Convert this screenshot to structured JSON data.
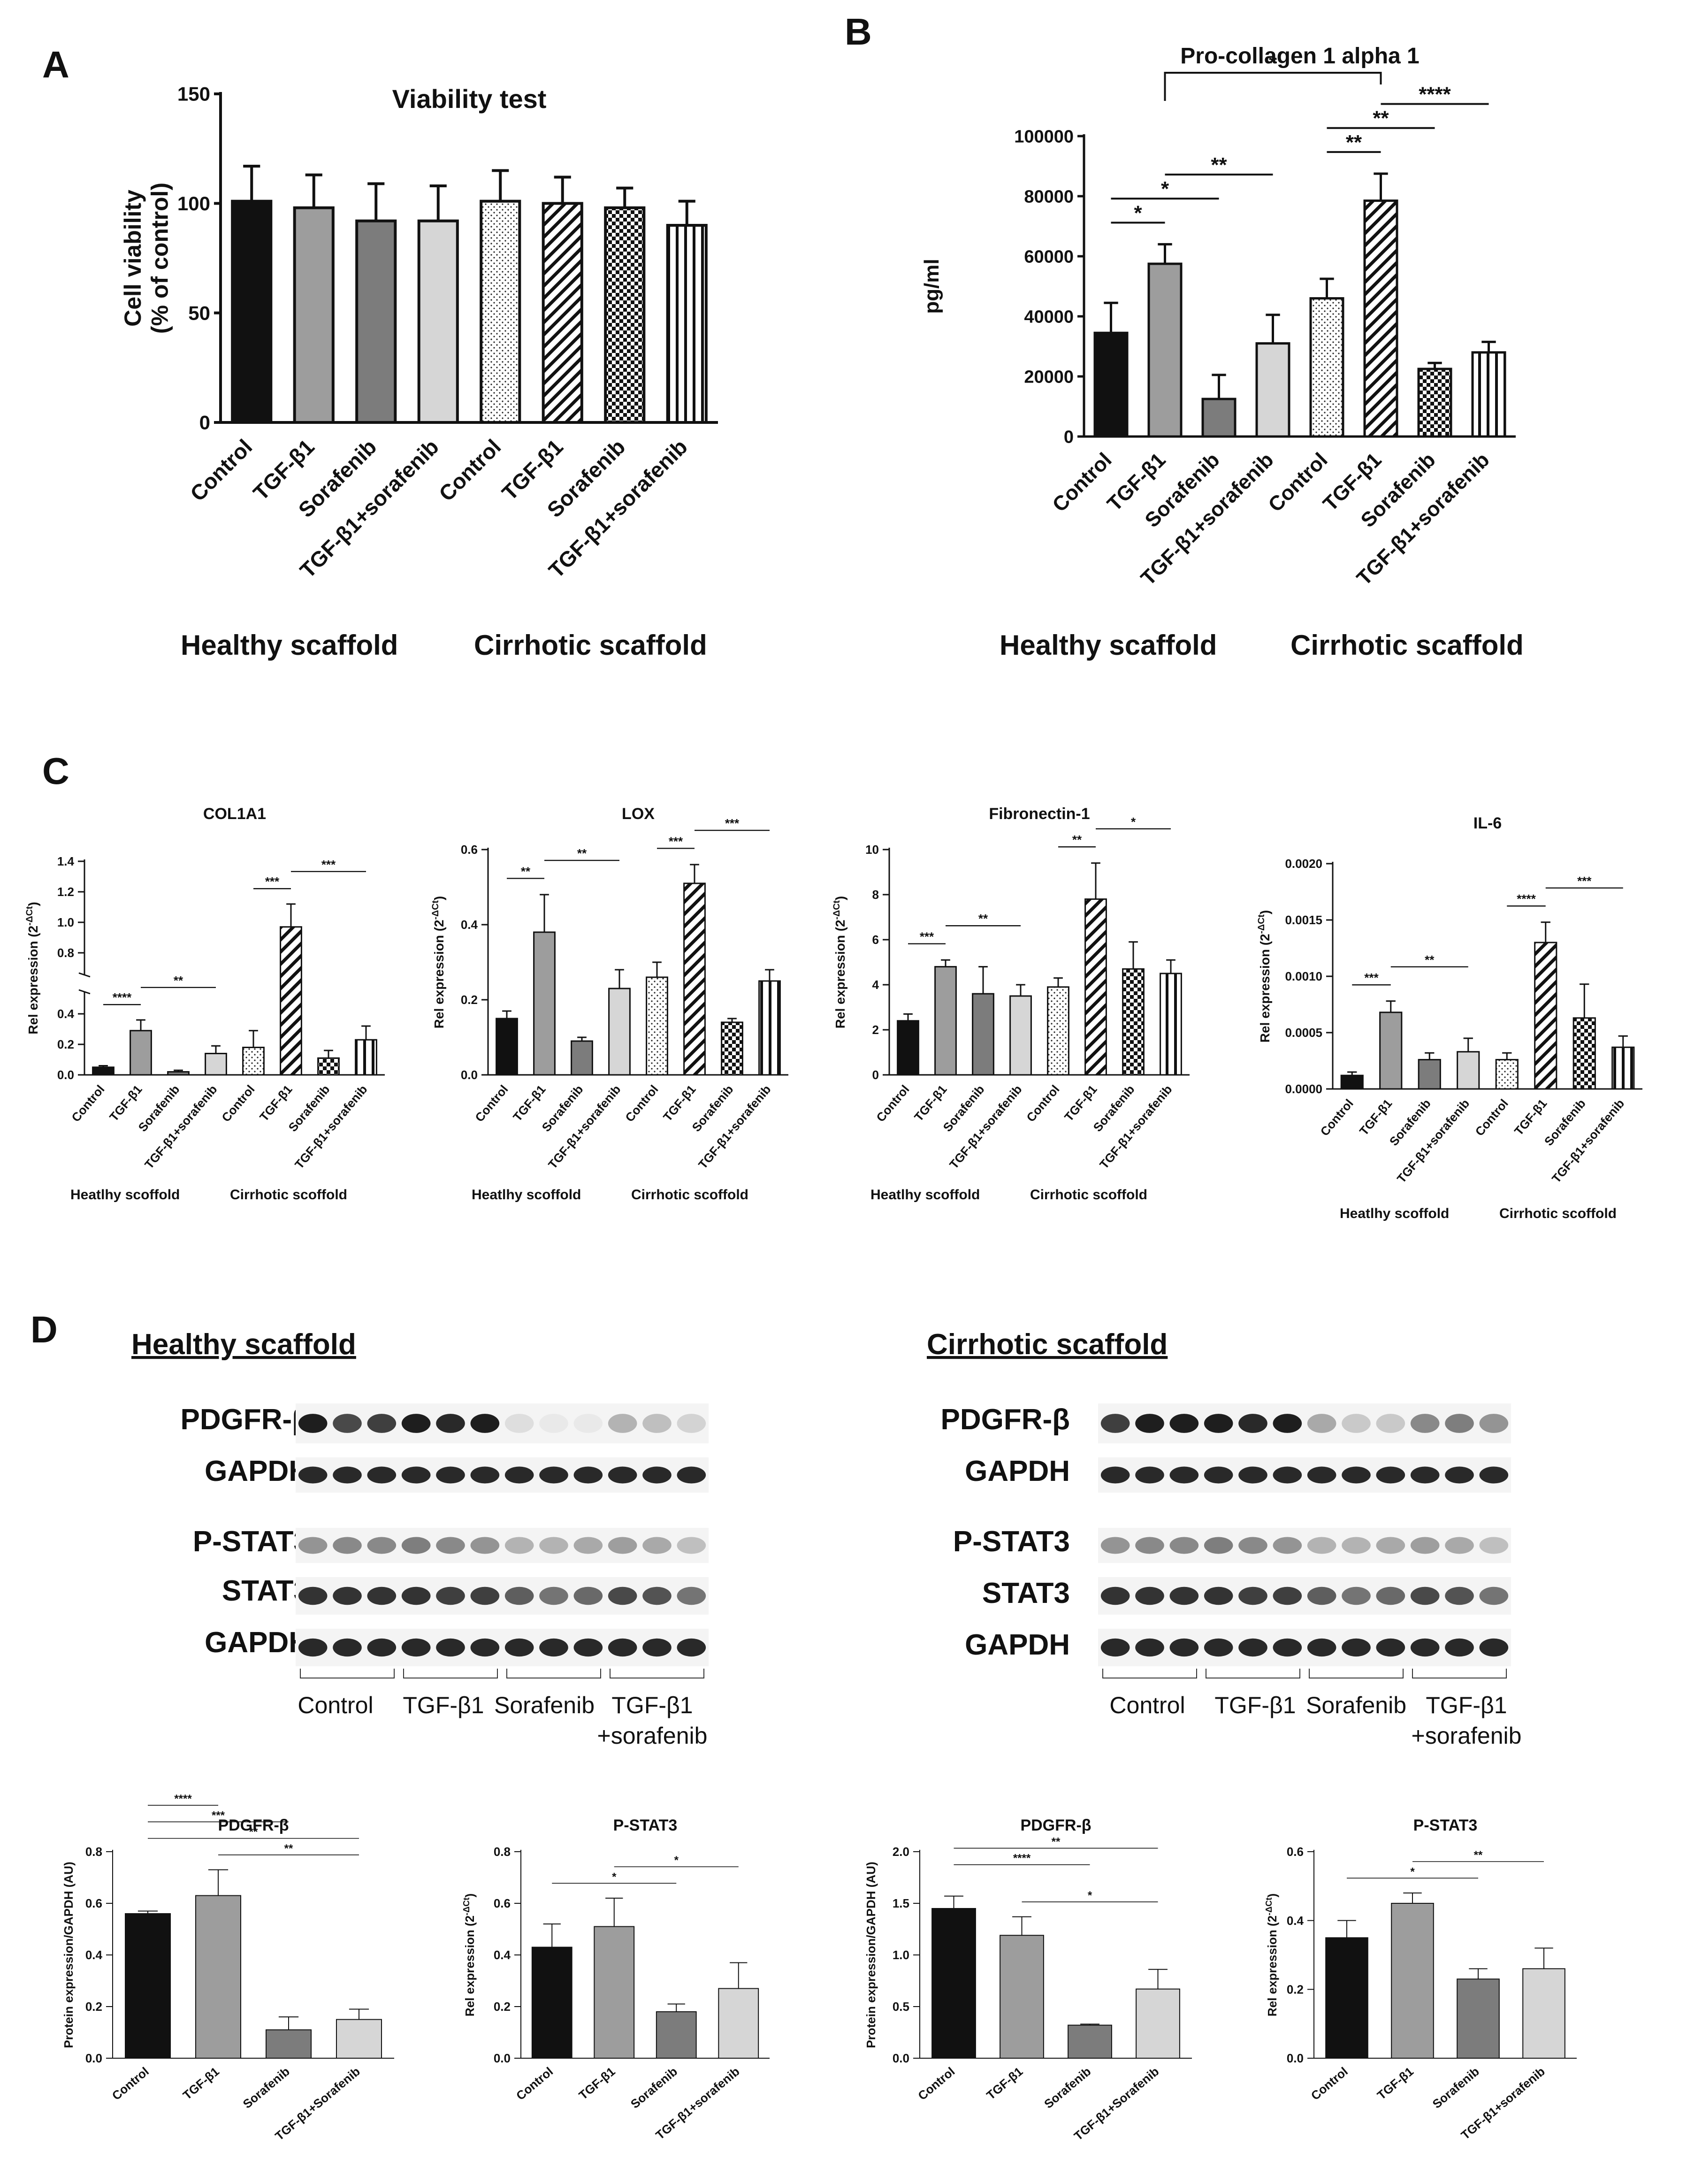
{
  "colors": {
    "black": "#111111",
    "dark_gray": "#7c7c7c",
    "mid_gray": "#9d9d9d",
    "light_gray": "#d6d6d6",
    "white": "#ffffff",
    "blot_band": "#1e1e1e",
    "blot_background": "#f4f4f4"
  },
  "fill_styles": [
    "black",
    "mid_gray",
    "dark_gray",
    "light_gray",
    "dots",
    "diag",
    "checker",
    "vlines"
  ],
  "panel_labels": {
    "a": "A",
    "b": "B",
    "c": "C",
    "d": "D"
  },
  "group_labels": {
    "healthy": "Healthy scaffold",
    "cirrhotic": "Cirrhotic scaffold"
  },
  "group_labels_small": {
    "healthy": "Heatlhy scoffold",
    "cirrhotic": "Cirrhotic scoffold"
  },
  "panel_d": {
    "healthy_title": "Healthy scaffold",
    "cirrhotic_title": "Cirrhotic scaffold",
    "blot_rows_top": [
      "PDGFR-β",
      "GAPDH"
    ],
    "blot_rows_bottom": [
      "P-STAT3",
      "STAT3",
      "GAPDH"
    ],
    "lane_groups": [
      "Control",
      "TGF-β1",
      "Sorafenib",
      "TGF-β1",
      "+sorafenib"
    ]
  },
  "chart_data": [
    {
      "id": "A",
      "type": "bar",
      "title": "Viability test",
      "xlabel": "",
      "ylabel": "Cell viability (% of control)",
      "ylabel_lines": [
        "Cell viability",
        "(% of control)"
      ],
      "ylim": [
        0,
        150
      ],
      "yticks": [
        "0",
        "50",
        "100",
        "150"
      ],
      "categories": [
        "Control",
        "TGF-β1",
        "Sorafenib",
        "TGF-β1+sorafenib",
        "Control",
        "TGF-β1",
        "Sorafenib",
        "TGF-β1+sorafenib"
      ],
      "values": [
        101,
        98,
        92,
        92,
        101,
        100,
        98,
        90
      ],
      "errors": [
        16,
        15,
        17,
        16,
        14,
        12,
        9,
        11
      ],
      "groups": [
        "Healthy scaffold",
        "Cirrhotic scaffold"
      ],
      "significance": []
    },
    {
      "id": "B",
      "type": "bar",
      "title": "Pro-collagen 1 alpha 1",
      "xlabel": "",
      "ylabel": "pg/ml",
      "ylim": [
        0,
        100000
      ],
      "yticks": [
        "0",
        "20000",
        "40000",
        "60000",
        "80000",
        "100000"
      ],
      "categories": [
        "Control",
        "TGF-β1",
        "Sorafenib",
        "TGF-β1+sorafenib",
        "Control",
        "TGF-β1",
        "Sorafenib",
        "TGF-β1+sorafenib"
      ],
      "values": [
        34500,
        57500,
        12500,
        31000,
        46000,
        78500,
        22500,
        28000
      ],
      "errors": [
        10000,
        6500,
        8000,
        9500,
        6500,
        9000,
        2000,
        3500
      ],
      "groups": [
        "Healthy scaffold",
        "Cirrhotic scaffold"
      ],
      "significance": [
        {
          "from": 0,
          "to": 1,
          "label": "*",
          "level": 0
        },
        {
          "from": 0,
          "to": 2,
          "label": "*",
          "level": 1
        },
        {
          "from": 1,
          "to": 3,
          "label": "**",
          "level": 2
        },
        {
          "from": 4,
          "to": 5,
          "label": "**",
          "level": 0
        },
        {
          "from": 4,
          "to": 6,
          "label": "**",
          "level": 1
        },
        {
          "from": 5,
          "to": 7,
          "label": "****",
          "level": 2
        },
        {
          "from": 1,
          "to": 5,
          "label": "*",
          "level": 3,
          "bracket": true
        }
      ]
    },
    {
      "id": "C1",
      "type": "bar",
      "title": "COL1A1",
      "xlabel": "",
      "ylabel": "Rel expression (2^-ΔCt)",
      "ylabel_lines": [
        "Rel expression (2",
        "-ΔCt",
        ")"
      ],
      "ylim": [
        0,
        1.4
      ],
      "yticks": [
        "0.0",
        "0.2",
        "0.4",
        "0.8",
        "1.0",
        "1.2",
        "1.4"
      ],
      "broken_axis": true,
      "categories": [
        "Control",
        "TGF-β1",
        "Sorafenib",
        "TGF-β1+sorafenib",
        "Control",
        "TGF-β1",
        "Sorafenib",
        "TGF-β1+sorafenib"
      ],
      "values": [
        0.05,
        0.29,
        0.02,
        0.14,
        0.18,
        0.97,
        0.11,
        0.23
      ],
      "errors": [
        0.01,
        0.07,
        0.01,
        0.05,
        0.11,
        0.15,
        0.05,
        0.09
      ],
      "groups": [
        "Heatlhy scoffold",
        "Cirrhotic scoffold"
      ],
      "significance": [
        {
          "from": 0,
          "to": 1,
          "label": "****",
          "level": 0
        },
        {
          "from": 1,
          "to": 3,
          "label": "**",
          "level": 1
        },
        {
          "from": 4,
          "to": 5,
          "label": "***",
          "level": 0
        },
        {
          "from": 5,
          "to": 7,
          "label": "***",
          "level": 1
        }
      ]
    },
    {
      "id": "C2",
      "type": "bar",
      "title": "LOX",
      "xlabel": "",
      "ylabel": "Rel expression (2^-ΔCt)",
      "ylabel_lines": [
        "Rel expression (2",
        "-ΔCt",
        ")"
      ],
      "ylim": [
        0,
        0.6
      ],
      "yticks": [
        "0.0",
        "0.2",
        "0.4",
        "0.6"
      ],
      "categories": [
        "Control",
        "TGF-β1",
        "Sorafenib",
        "TGF-β1+sorafenib",
        "Control",
        "TGF-β1",
        "Sorafenib",
        "TGF-β1+sorafenib"
      ],
      "values": [
        0.15,
        0.38,
        0.09,
        0.23,
        0.26,
        0.51,
        0.14,
        0.25
      ],
      "errors": [
        0.02,
        0.1,
        0.01,
        0.05,
        0.04,
        0.05,
        0.01,
        0.03
      ],
      "groups": [
        "Heatlhy scoffold",
        "Cirrhotic scoffold"
      ],
      "significance": [
        {
          "from": 0,
          "to": 1,
          "label": "**",
          "level": 0
        },
        {
          "from": 1,
          "to": 3,
          "label": "**",
          "level": 1
        },
        {
          "from": 4,
          "to": 5,
          "label": "***",
          "level": 0
        },
        {
          "from": 5,
          "to": 7,
          "label": "***",
          "level": 1
        }
      ]
    },
    {
      "id": "C3",
      "type": "bar",
      "title": "Fibronectin-1",
      "xlabel": "",
      "ylabel": "Rel expression (2^-ΔCt)",
      "ylabel_lines": [
        "Rel expression (2",
        "-ΔCt",
        ")"
      ],
      "ylim": [
        0,
        10
      ],
      "yticks": [
        "0",
        "2",
        "4",
        "6",
        "8",
        "10"
      ],
      "categories": [
        "Control",
        "TGF-β1",
        "Sorafenib",
        "TGF-β1+sorafenib",
        "Control",
        "TGF-β1",
        "Sorafenib",
        "TGF-β1+sorafenib"
      ],
      "values": [
        2.4,
        4.8,
        3.6,
        3.5,
        3.9,
        7.8,
        4.7,
        4.5
      ],
      "errors": [
        0.3,
        0.3,
        1.2,
        0.5,
        0.4,
        1.6,
        1.2,
        0.6
      ],
      "groups": [
        "Heatlhy scoffold",
        "Cirrhotic scoffold"
      ],
      "significance": [
        {
          "from": 0,
          "to": 1,
          "label": "***",
          "level": 0
        },
        {
          "from": 1,
          "to": 3,
          "label": "**",
          "level": 1
        },
        {
          "from": 4,
          "to": 5,
          "label": "**",
          "level": 0
        },
        {
          "from": 5,
          "to": 7,
          "label": "*",
          "level": 1
        }
      ]
    },
    {
      "id": "C4",
      "type": "bar",
      "title": "IL-6",
      "xlabel": "",
      "ylabel": "Rel expression (2^-ΔCt)",
      "ylabel_lines": [
        "Rel expression (2",
        "-ΔCt",
        ")"
      ],
      "ylim": [
        0,
        0.002
      ],
      "yticks": [
        "0.0000",
        "0.0005",
        "0.0010",
        "0.0015",
        "0.0020"
      ],
      "categories": [
        "Control",
        "TGF-β1",
        "Sorafenib",
        "TGF-β1+sorafenib",
        "Control",
        "TGF-β1",
        "Sorafenib",
        "TGF-β1+sorafenib"
      ],
      "values": [
        0.00012,
        0.00068,
        0.00026,
        0.00033,
        0.00026,
        0.0013,
        0.00063,
        0.00037
      ],
      "errors": [
        3e-05,
        0.0001,
        6e-05,
        0.00012,
        6e-05,
        0.00018,
        0.0003,
        0.0001
      ],
      "groups": [
        "Heatlhy scoffold",
        "Cirrhotic scoffold"
      ],
      "significance": [
        {
          "from": 0,
          "to": 1,
          "label": "***",
          "level": 0
        },
        {
          "from": 1,
          "to": 3,
          "label": "**",
          "level": 1
        },
        {
          "from": 4,
          "to": 5,
          "label": "****",
          "level": 0
        },
        {
          "from": 5,
          "to": 7,
          "label": "***",
          "level": 1
        }
      ]
    },
    {
      "id": "D1",
      "type": "bar",
      "title": "PDGFR-β",
      "xlabel": "",
      "ylabel": "Protein expression/GAPDH (AU)",
      "ylim": [
        0,
        0.8
      ],
      "yticks": [
        "0.0",
        "0.2",
        "0.4",
        "0.6",
        "0.8"
      ],
      "categories": [
        "Control",
        "TGF-β1",
        "Sorafenib",
        "TGF-β1+Sorafenib"
      ],
      "values": [
        0.56,
        0.63,
        0.11,
        0.15
      ],
      "errors": [
        0.01,
        0.1,
        0.05,
        0.04
      ],
      "significance": [
        {
          "from": 0,
          "to": 1,
          "label": "****",
          "level": 3
        },
        {
          "from": 0,
          "to": 2,
          "label": "***",
          "level": 2
        },
        {
          "from": 0,
          "to": 3,
          "label": "**",
          "level": 1
        },
        {
          "from": 1,
          "to": 3,
          "label": "**",
          "level": 0
        }
      ]
    },
    {
      "id": "D2",
      "type": "bar",
      "title": "P-STAT3",
      "xlabel": "",
      "ylabel": "Rel expression (2^-ΔCt)",
      "ylabel_lines": [
        "Rel expression (2",
        "-ΔCt",
        ")"
      ],
      "ylim": [
        0,
        0.8
      ],
      "yticks": [
        "0.0",
        "0.2",
        "0.4",
        "0.6",
        "0.8"
      ],
      "categories": [
        "Control",
        "TGF-β1",
        "Sorafenib",
        "TGF-β1+sorafenib"
      ],
      "values": [
        0.43,
        0.51,
        0.18,
        0.27
      ],
      "errors": [
        0.09,
        0.11,
        0.03,
        0.1
      ],
      "significance": [
        {
          "from": 0,
          "to": 2,
          "label": "*",
          "level": 0
        },
        {
          "from": 1,
          "to": 3,
          "label": "*",
          "level": 1
        }
      ]
    },
    {
      "id": "D3",
      "type": "bar",
      "title": "PDGFR-β",
      "xlabel": "",
      "ylabel": "Protein expression/GAPDH (AU)",
      "ylim": [
        0,
        2.0
      ],
      "yticks": [
        "0.0",
        "0.5",
        "1.0",
        "1.5",
        "2.0"
      ],
      "categories": [
        "Control",
        "TGF-β1",
        "Sorafenib",
        "TGF-β1+Sorafenib"
      ],
      "values": [
        1.45,
        1.19,
        0.32,
        0.67
      ],
      "errors": [
        0.12,
        0.18,
        0.01,
        0.19
      ],
      "significance": [
        {
          "from": 0,
          "to": 3,
          "label": "**",
          "level": 2
        },
        {
          "from": 0,
          "to": 2,
          "label": "****",
          "level": 1
        },
        {
          "from": 1,
          "to": 3,
          "label": "*",
          "level": 0
        }
      ]
    },
    {
      "id": "D4",
      "type": "bar",
      "title": "P-STAT3",
      "xlabel": "",
      "ylabel": "Rel expression (2^-ΔCt)",
      "ylabel_lines": [
        "Rel expression (2",
        "-ΔCt",
        ")"
      ],
      "ylim": [
        0,
        0.6
      ],
      "yticks": [
        "0.0",
        "0.2",
        "0.4",
        "0.6"
      ],
      "categories": [
        "Control",
        "TGF-β1",
        "Sorafenib",
        "TGF-β1+sorafenib"
      ],
      "values": [
        0.35,
        0.45,
        0.23,
        0.26
      ],
      "errors": [
        0.05,
        0.03,
        0.03,
        0.06
      ],
      "significance": [
        {
          "from": 0,
          "to": 2,
          "label": "*",
          "level": 0
        },
        {
          "from": 1,
          "to": 3,
          "label": "**",
          "level": 1
        }
      ]
    }
  ]
}
